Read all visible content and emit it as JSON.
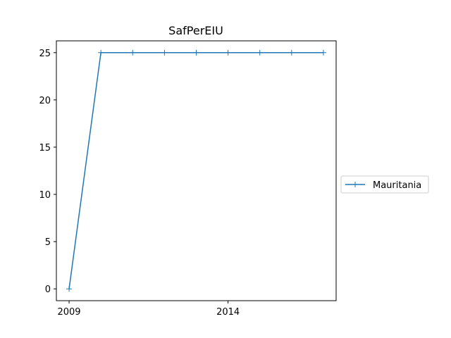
{
  "chart_data": {
    "type": "line",
    "title": "SafPerEIU",
    "xlabel": "",
    "ylabel": "",
    "x": [
      2009,
      2010,
      2011,
      2012,
      2013,
      2014,
      2015,
      2016,
      2017
    ],
    "series": [
      {
        "name": "Mauritania",
        "values": [
          0,
          25,
          25,
          25,
          25,
          25,
          25,
          25,
          25
        ],
        "color": "#1f77b4",
        "marker": "+"
      }
    ],
    "xticks": [
      2009,
      2014
    ],
    "yticks": [
      0,
      5,
      10,
      15,
      20,
      25
    ],
    "xlim": [
      2008.6,
      2017.4
    ],
    "ylim": [
      -1.25,
      26.25
    ],
    "grid": false,
    "legend_position": "outside-right"
  }
}
